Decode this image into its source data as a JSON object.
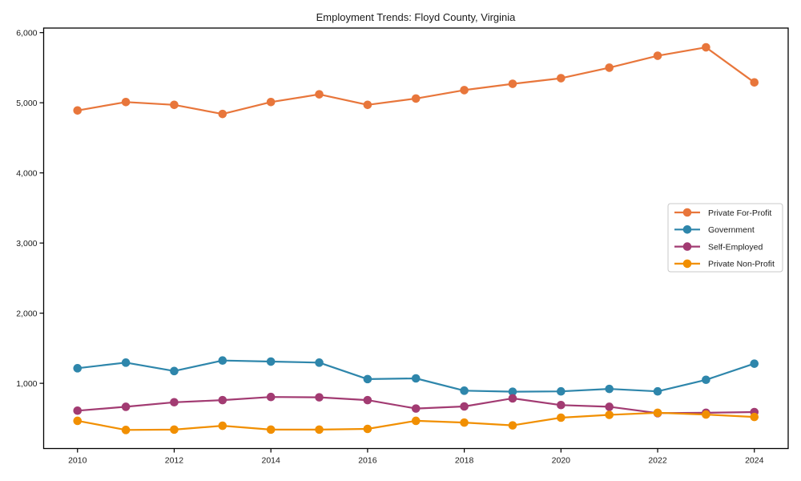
{
  "figure": {
    "background": "#ffffff",
    "axis_color": "#000000",
    "tick_label_color": "#1a1a1a"
  },
  "chart_data": {
    "type": "line",
    "title": "Employment Trends: Floyd County, Virginia",
    "xlabel": "",
    "ylabel": "",
    "x": [
      2010,
      2011,
      2012,
      2013,
      2014,
      2015,
      2016,
      2017,
      2018,
      2019,
      2020,
      2021,
      2022,
      2023,
      2024
    ],
    "series": [
      {
        "name": "Private For-Profit",
        "color": "#E8763B",
        "values": [
          4890,
          5010,
          4970,
          4840,
          5010,
          5120,
          4970,
          5060,
          5180,
          5270,
          5350,
          5500,
          5670,
          5790,
          5290
        ]
      },
      {
        "name": "Government",
        "color": "#2E86AB",
        "values": [
          1215,
          1295,
          1175,
          1325,
          1310,
          1295,
          1060,
          1070,
          895,
          880,
          885,
          920,
          885,
          1050,
          1280
        ]
      },
      {
        "name": "Self-Employed",
        "color": "#A23B72",
        "values": [
          610,
          665,
          730,
          760,
          805,
          800,
          760,
          640,
          670,
          785,
          690,
          665,
          575,
          580,
          590
        ]
      },
      {
        "name": "Private Non-Profit",
        "color": "#F18F01",
        "values": [
          465,
          335,
          340,
          395,
          340,
          340,
          350,
          465,
          440,
          400,
          510,
          550,
          580,
          555,
          520
        ]
      }
    ],
    "xlim": [
      2009.3,
      2024.7
    ],
    "ylim": [
      70,
      6065
    ],
    "xticks": {
      "values": [
        2010,
        2012,
        2014,
        2016,
        2018,
        2020,
        2022,
        2024
      ],
      "labels": [
        "2010",
        "2012",
        "2014",
        "2016",
        "2018",
        "2020",
        "2022",
        "2024"
      ]
    },
    "yticks": {
      "values": [
        1000,
        2000,
        3000,
        4000,
        5000,
        6000
      ],
      "labels": [
        "1,000",
        "2,000",
        "3,000",
        "4,000",
        "5,000",
        "6,000"
      ]
    },
    "grid": false,
    "legend": {
      "position": "right-middle",
      "entries": [
        "Private For-Profit",
        "Government",
        "Self-Employed",
        "Private Non-Profit"
      ]
    },
    "marker": "circle",
    "line_width": 2.2,
    "marker_radius": 5.3
  }
}
